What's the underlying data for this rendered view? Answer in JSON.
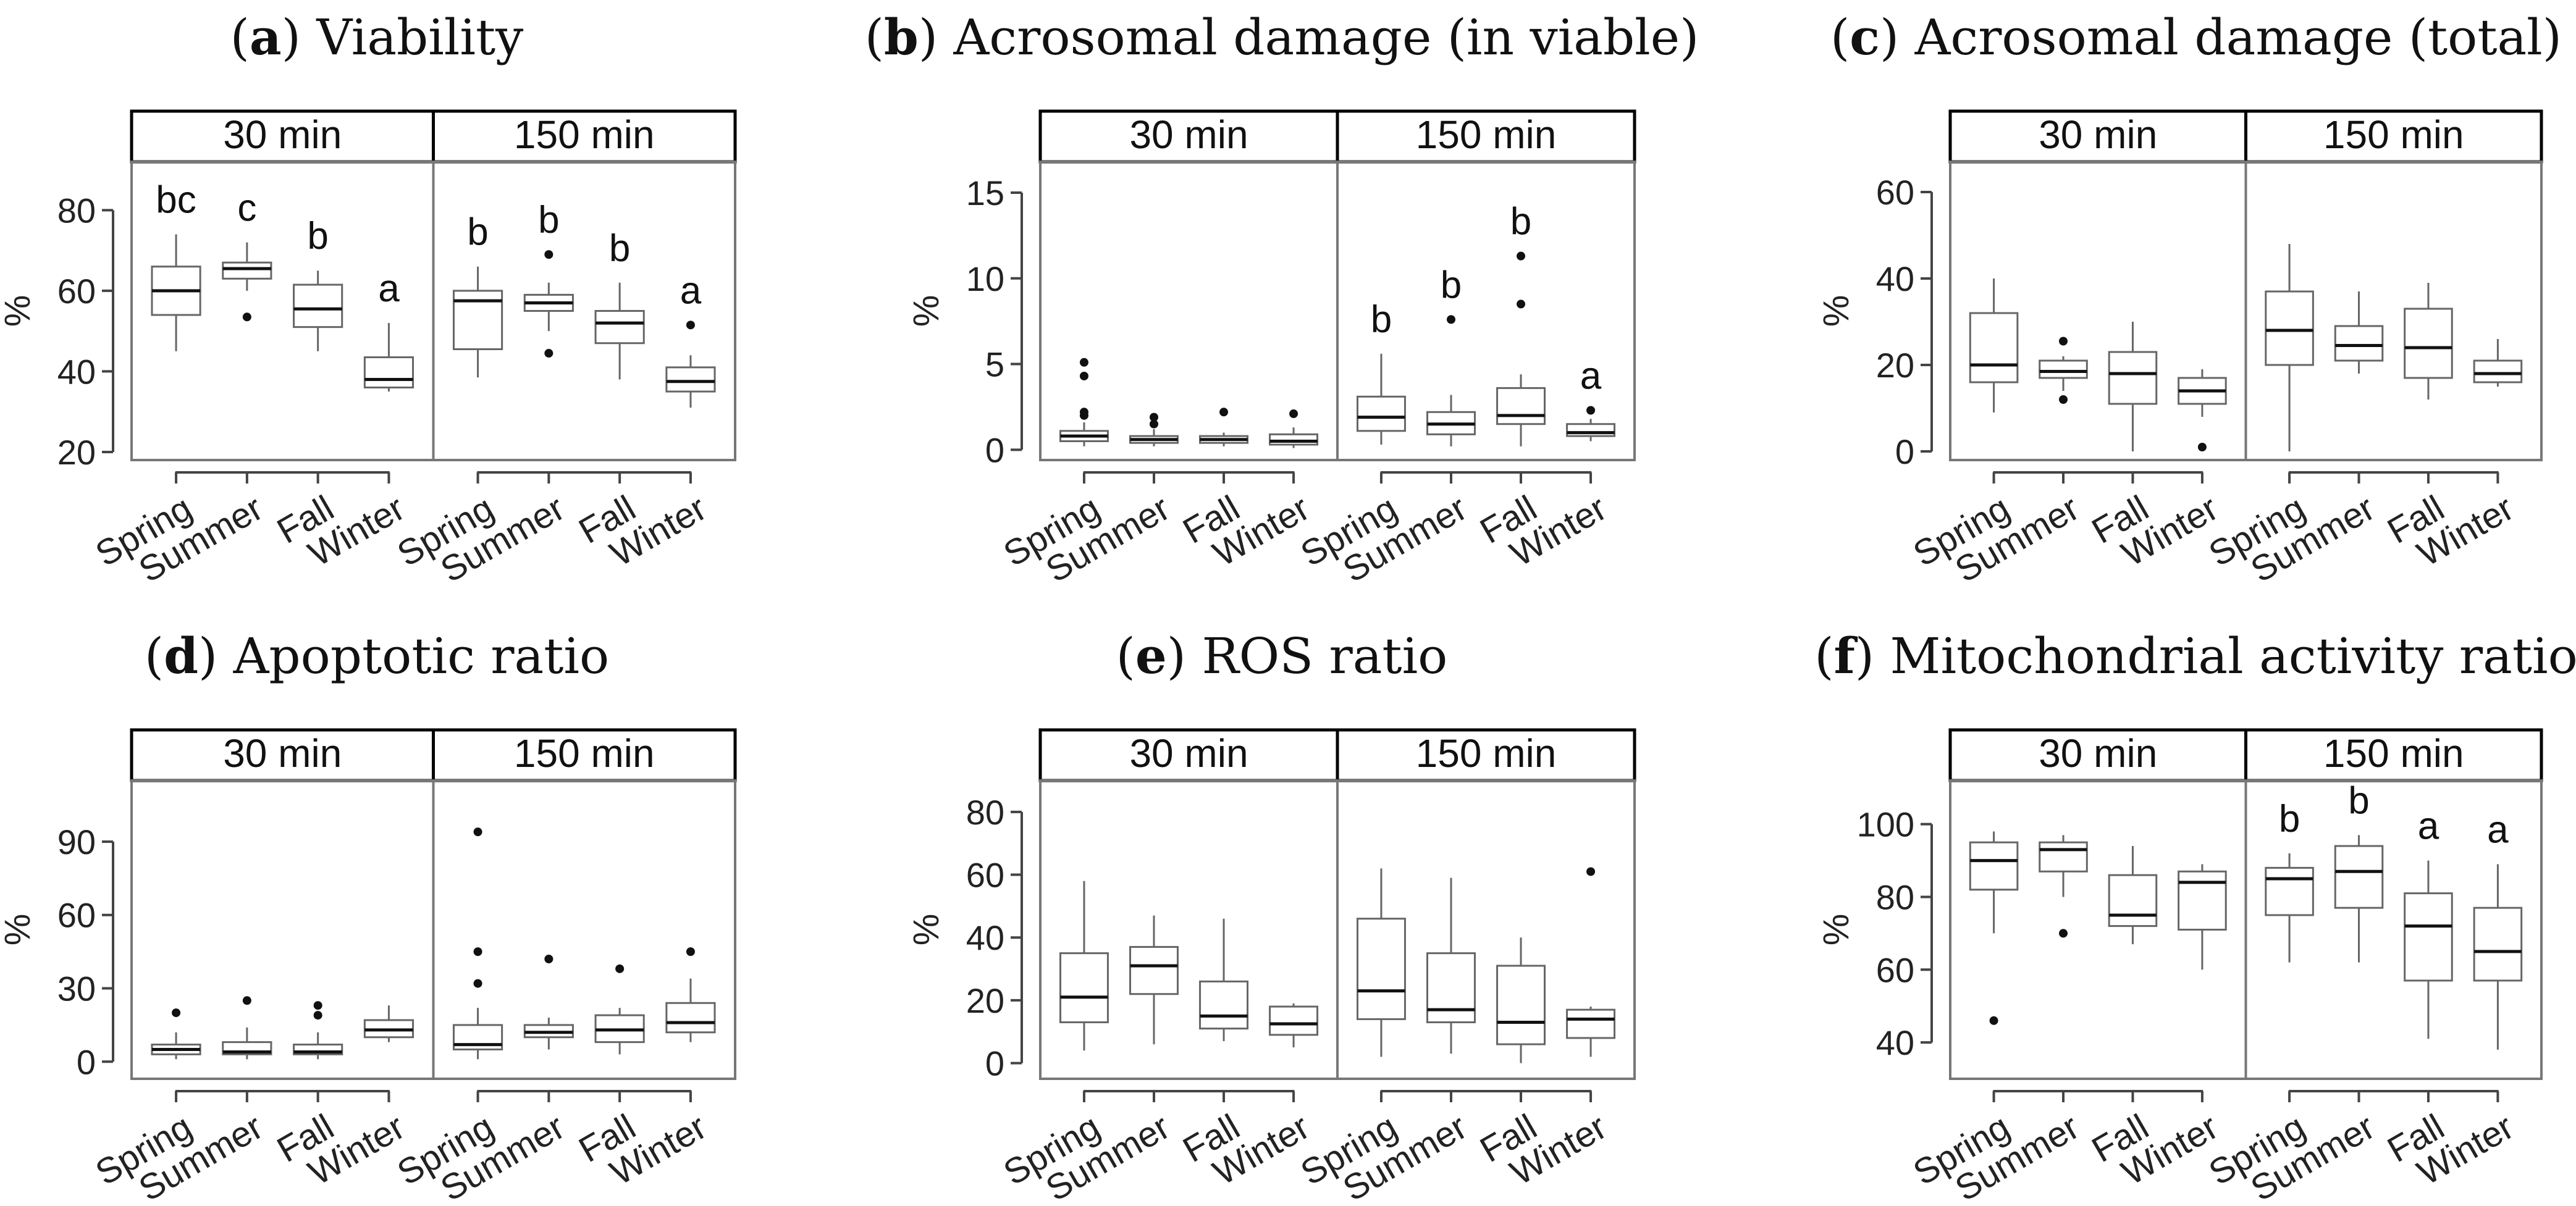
{
  "figure": {
    "colors": {
      "box": "#666666",
      "median": "#111111",
      "frame": "#777777",
      "strip_bg": "#ffffff",
      "strip_border": "#000000",
      "outlier": "#111111"
    }
  },
  "chart_data": [
    {
      "type": "boxplot",
      "label": "a",
      "title": "Viability",
      "ylabel": "%",
      "ylim": [
        18,
        92
      ],
      "yticks": [
        20,
        40,
        60,
        80
      ],
      "facets": [
        "30 min",
        "150 min"
      ],
      "categories": [
        "Spring",
        "Summer",
        "Fall",
        "Winter"
      ],
      "boxes": [
        [
          {
            "min": 45,
            "q1": 54,
            "median": 60,
            "q3": 66,
            "max": 74,
            "outliers": [],
            "letter": "bc"
          },
          {
            "min": 60,
            "q1": 63,
            "median": 65.5,
            "q3": 67,
            "max": 72,
            "outliers": [
              53.5
            ],
            "letter": "c"
          },
          {
            "min": 45,
            "q1": 51,
            "median": 55.5,
            "q3": 61.5,
            "max": 65,
            "outliers": [],
            "letter": "b"
          },
          {
            "min": 35,
            "q1": 36,
            "median": 38,
            "q3": 43.5,
            "max": 52,
            "outliers": [],
            "letter": "a"
          }
        ],
        [
          {
            "min": 38.5,
            "q1": 45.5,
            "median": 57.5,
            "q3": 60,
            "max": 66,
            "outliers": [],
            "letter": "b"
          },
          {
            "min": 50,
            "q1": 55,
            "median": 57,
            "q3": 59,
            "max": 62,
            "outliers": [
              69,
              44.5
            ],
            "letter": "b"
          },
          {
            "min": 38,
            "q1": 47,
            "median": 52,
            "q3": 55,
            "max": 62,
            "outliers": [],
            "letter": "b"
          },
          {
            "min": 31,
            "q1": 35,
            "median": 37.5,
            "q3": 41,
            "max": 44,
            "outliers": [
              51.5
            ],
            "letter": "a"
          }
        ]
      ]
    },
    {
      "type": "boxplot",
      "label": "b",
      "title": "Acrosomal damage (in viable)",
      "ylabel": "%",
      "ylim": [
        -0.6,
        16.8
      ],
      "yticks": [
        0,
        5,
        10,
        15
      ],
      "facets": [
        "30 min",
        "150 min"
      ],
      "categories": [
        "Spring",
        "Summer",
        "Fall",
        "Winter"
      ],
      "boxes": [
        [
          {
            "min": 0.2,
            "q1": 0.5,
            "median": 0.8,
            "q3": 1.1,
            "max": 1.6,
            "outliers": [
              2.0,
              2.2,
              4.3,
              5.1
            ],
            "letter": ""
          },
          {
            "min": 0.2,
            "q1": 0.4,
            "median": 0.6,
            "q3": 0.8,
            "max": 1.2,
            "outliers": [
              1.5,
              1.9
            ],
            "letter": ""
          },
          {
            "min": 0.2,
            "q1": 0.4,
            "median": 0.6,
            "q3": 0.8,
            "max": 1.0,
            "outliers": [
              2.2
            ],
            "letter": ""
          },
          {
            "min": 0.1,
            "q1": 0.3,
            "median": 0.5,
            "q3": 0.9,
            "max": 1.3,
            "outliers": [
              2.1
            ],
            "letter": ""
          }
        ],
        [
          {
            "min": 0.3,
            "q1": 1.1,
            "median": 1.9,
            "q3": 3.1,
            "max": 5.6,
            "outliers": [],
            "letter": "b"
          },
          {
            "min": 0.2,
            "q1": 0.9,
            "median": 1.5,
            "q3": 2.2,
            "max": 3.2,
            "outliers": [
              7.6
            ],
            "letter": "b"
          },
          {
            "min": 0.2,
            "q1": 1.5,
            "median": 2.0,
            "q3": 3.6,
            "max": 4.4,
            "outliers": [
              8.5,
              11.3
            ],
            "letter": "b"
          },
          {
            "min": 0.5,
            "q1": 0.8,
            "median": 1.0,
            "q3": 1.5,
            "max": 1.8,
            "outliers": [
              2.3
            ],
            "letter": "a"
          }
        ]
      ]
    },
    {
      "type": "boxplot",
      "label": "c",
      "title": "Acrosomal damage (total)",
      "ylabel": "%",
      "ylim": [
        -2,
        67
      ],
      "yticks": [
        0,
        20,
        40,
        60
      ],
      "facets": [
        "30 min",
        "150 min"
      ],
      "categories": [
        "Spring",
        "Summer",
        "Fall",
        "Winter"
      ],
      "boxes": [
        [
          {
            "min": 9,
            "q1": 16,
            "median": 20,
            "q3": 32,
            "max": 40,
            "outliers": [],
            "letter": ""
          },
          {
            "min": 14,
            "q1": 17,
            "median": 18.5,
            "q3": 21,
            "max": 22,
            "outliers": [
              25.5,
              12
            ],
            "letter": ""
          },
          {
            "min": 0,
            "q1": 11,
            "median": 18,
            "q3": 23,
            "max": 30,
            "outliers": [],
            "letter": ""
          },
          {
            "min": 8,
            "q1": 11,
            "median": 14,
            "q3": 17,
            "max": 19,
            "outliers": [
              1
            ],
            "letter": ""
          }
        ],
        [
          {
            "min": 0,
            "q1": 20,
            "median": 28,
            "q3": 37,
            "max": 48,
            "outliers": [],
            "letter": ""
          },
          {
            "min": 18,
            "q1": 21,
            "median": 24.5,
            "q3": 29,
            "max": 37,
            "outliers": [],
            "letter": ""
          },
          {
            "min": 12,
            "q1": 17,
            "median": 24,
            "q3": 33,
            "max": 39,
            "outliers": [],
            "letter": ""
          },
          {
            "min": 15,
            "q1": 16,
            "median": 18,
            "q3": 21,
            "max": 26,
            "outliers": [],
            "letter": ""
          }
        ]
      ]
    },
    {
      "type": "boxplot",
      "label": "d",
      "title": "Apoptotic ratio",
      "ylabel": "%",
      "ylim": [
        -7,
        115
      ],
      "yticks": [
        0,
        30,
        60,
        90
      ],
      "facets": [
        "30 min",
        "150 min"
      ],
      "categories": [
        "Spring",
        "Summer",
        "Fall",
        "Winter"
      ],
      "boxes": [
        [
          {
            "min": 1,
            "q1": 3,
            "median": 5,
            "q3": 7,
            "max": 12,
            "outliers": [
              20
            ],
            "letter": ""
          },
          {
            "min": 1,
            "q1": 3,
            "median": 4,
            "q3": 8,
            "max": 14,
            "outliers": [
              25
            ],
            "letter": ""
          },
          {
            "min": 1,
            "q1": 3,
            "median": 4,
            "q3": 7,
            "max": 12,
            "outliers": [
              19,
              23
            ],
            "letter": ""
          },
          {
            "min": 8,
            "q1": 10,
            "median": 13,
            "q3": 17,
            "max": 23,
            "outliers": [],
            "letter": ""
          }
        ],
        [
          {
            "min": 1,
            "q1": 5,
            "median": 7,
            "q3": 15,
            "max": 22,
            "outliers": [
              32,
              45,
              94
            ],
            "letter": ""
          },
          {
            "min": 5,
            "q1": 10,
            "median": 12,
            "q3": 15,
            "max": 18,
            "outliers": [
              42
            ],
            "letter": ""
          },
          {
            "min": 3,
            "q1": 8,
            "median": 13,
            "q3": 19,
            "max": 22,
            "outliers": [
              38
            ],
            "letter": ""
          },
          {
            "min": 8,
            "q1": 12,
            "median": 16,
            "q3": 24,
            "max": 34,
            "outliers": [
              45
            ],
            "letter": ""
          }
        ]
      ]
    },
    {
      "type": "boxplot",
      "label": "e",
      "title": "ROS ratio",
      "ylabel": "%",
      "ylim": [
        -5,
        90
      ],
      "yticks": [
        0,
        20,
        40,
        60,
        80
      ],
      "facets": [
        "30 min",
        "150 min"
      ],
      "categories": [
        "Spring",
        "Summer",
        "Fall",
        "Winter"
      ],
      "boxes": [
        [
          {
            "min": 4,
            "q1": 13,
            "median": 21,
            "q3": 35,
            "max": 58,
            "outliers": [],
            "letter": ""
          },
          {
            "min": 6,
            "q1": 22,
            "median": 31,
            "q3": 37,
            "max": 47,
            "outliers": [],
            "letter": ""
          },
          {
            "min": 7,
            "q1": 11,
            "median": 15,
            "q3": 26,
            "max": 46,
            "outliers": [],
            "letter": ""
          },
          {
            "min": 5,
            "q1": 9,
            "median": 12.5,
            "q3": 18,
            "max": 19,
            "outliers": [],
            "letter": ""
          }
        ],
        [
          {
            "min": 2,
            "q1": 14,
            "median": 23,
            "q3": 46,
            "max": 62,
            "outliers": [],
            "letter": ""
          },
          {
            "min": 3,
            "q1": 13,
            "median": 17,
            "q3": 35,
            "max": 59,
            "outliers": [],
            "letter": ""
          },
          {
            "min": 0,
            "q1": 6,
            "median": 13,
            "q3": 31,
            "max": 40,
            "outliers": [],
            "letter": ""
          },
          {
            "min": 2,
            "q1": 8,
            "median": 14,
            "q3": 17,
            "max": 18,
            "outliers": [
              61
            ],
            "letter": ""
          }
        ]
      ]
    },
    {
      "type": "boxplot",
      "label": "f",
      "title": "Mitochondrial activity ratio",
      "ylabel": "%",
      "ylim": [
        30,
        112
      ],
      "yticks": [
        40,
        60,
        80,
        100
      ],
      "facets": [
        "30 min",
        "150 min"
      ],
      "categories": [
        "Spring",
        "Summer",
        "Fall",
        "Winter"
      ],
      "boxes": [
        [
          {
            "min": 70,
            "q1": 82,
            "median": 90,
            "q3": 95,
            "max": 98,
            "outliers": [
              46
            ],
            "letter": ""
          },
          {
            "min": 80,
            "q1": 87,
            "median": 93,
            "q3": 95,
            "max": 97,
            "outliers": [
              70
            ],
            "letter": ""
          },
          {
            "min": 67,
            "q1": 72,
            "median": 75,
            "q3": 86,
            "max": 94,
            "outliers": [],
            "letter": ""
          },
          {
            "min": 60,
            "q1": 71,
            "median": 84,
            "q3": 87,
            "max": 89,
            "outliers": [],
            "letter": ""
          }
        ],
        [
          {
            "min": 62,
            "q1": 75,
            "median": 85,
            "q3": 88,
            "max": 92,
            "outliers": [],
            "letter": "b"
          },
          {
            "min": 62,
            "q1": 77,
            "median": 87,
            "q3": 94,
            "max": 97,
            "outliers": [],
            "letter": "b"
          },
          {
            "min": 41,
            "q1": 57,
            "median": 72,
            "q3": 81,
            "max": 90,
            "outliers": [],
            "letter": "a"
          },
          {
            "min": 38,
            "q1": 57,
            "median": 65,
            "q3": 77,
            "max": 89,
            "outliers": [],
            "letter": "a"
          }
        ]
      ]
    }
  ]
}
